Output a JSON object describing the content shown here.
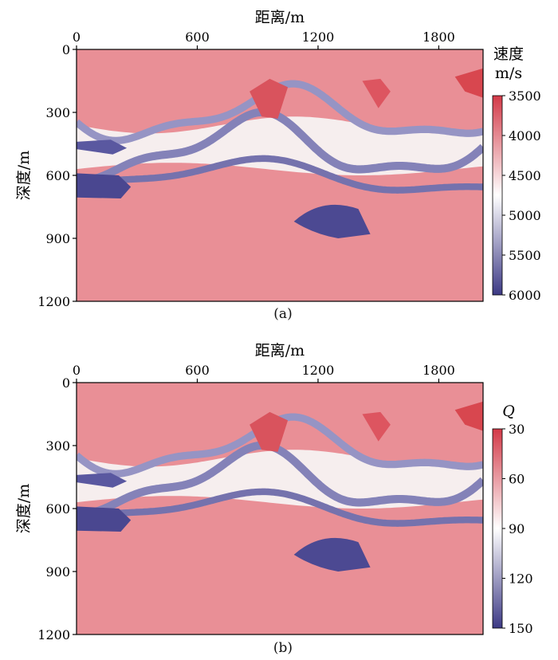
{
  "chart_data": [
    {
      "type": "heatmap",
      "caption": "(a)",
      "xlabel": "距离/m",
      "ylabel": "深度/m",
      "xlim": [
        0,
        2020
      ],
      "ylim": [
        1200,
        0
      ],
      "x_ticks": [
        0,
        600,
        1200,
        1800
      ],
      "y_ticks": [
        0,
        300,
        600,
        900,
        1200
      ],
      "colorbar": {
        "title_lines": [
          "速度",
          "m/s"
        ],
        "title_italic": false,
        "ticks": [
          3500,
          4000,
          4500,
          5000,
          5500,
          6000
        ],
        "range": [
          3500,
          6000
        ],
        "colors": [
          "#d33a48",
          "#ffffff",
          "#3d3a85"
        ]
      }
    },
    {
      "type": "heatmap",
      "caption": "(b)",
      "xlabel": "距离/m",
      "ylabel": "深度/m",
      "xlim": [
        0,
        2020
      ],
      "ylim": [
        1200,
        0
      ],
      "x_ticks": [
        0,
        600,
        1200,
        1800
      ],
      "y_ticks": [
        0,
        300,
        600,
        900,
        1200
      ],
      "colorbar": {
        "title_lines": [
          "Q"
        ],
        "title_italic": true,
        "ticks": [
          30,
          60,
          90,
          120,
          150
        ],
        "range": [
          30,
          150
        ],
        "colors": [
          "#d33a48",
          "#ffffff",
          "#3d3a85"
        ]
      }
    }
  ]
}
